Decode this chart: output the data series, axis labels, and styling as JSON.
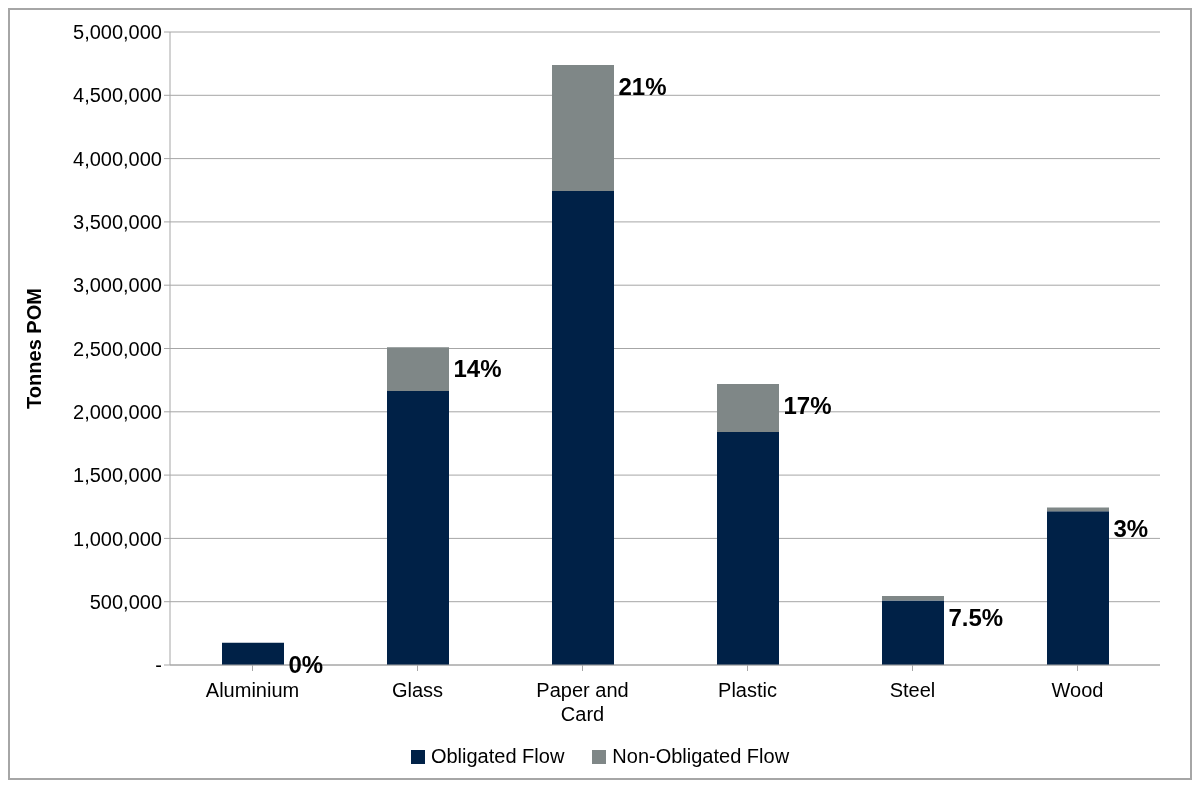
{
  "chart_data": {
    "type": "bar",
    "stacked": true,
    "ylabel": "Tonnes POM",
    "categories": [
      "Aluminium",
      "Glass",
      "Paper and Card",
      "Plastic",
      "Steel",
      "Wood"
    ],
    "series": [
      {
        "name": "Obligated Flow",
        "color": "#002147",
        "values": [
          175000,
          2165000,
          3745000,
          1840000,
          510000,
          1215000
        ]
      },
      {
        "name": "Non-Obligated Flow",
        "color": "#7f8787",
        "values": [
          0,
          345000,
          995000,
          380000,
          35000,
          30000
        ]
      }
    ],
    "ylim": [
      0,
      5000000
    ],
    "yticks": [
      {
        "value": 0,
        "label": "-"
      },
      {
        "value": 500000,
        "label": "500,000"
      },
      {
        "value": 1000000,
        "label": "1,000,000"
      },
      {
        "value": 1500000,
        "label": "1,500,000"
      },
      {
        "value": 2000000,
        "label": "2,000,000"
      },
      {
        "value": 2500000,
        "label": "2,500,000"
      },
      {
        "value": 3000000,
        "label": "3,000,000"
      },
      {
        "value": 3500000,
        "label": "3,500,000"
      },
      {
        "value": 4000000,
        "label": "4,000,000"
      },
      {
        "value": 4500000,
        "label": "4,500,000"
      },
      {
        "value": 5000000,
        "label": "5,000,000"
      }
    ],
    "grid": "y",
    "legend": "bottom",
    "annotations": [
      {
        "text": "0%",
        "x": "Aluminium",
        "y": 175000
      },
      {
        "text": "14%",
        "x": "Glass",
        "y": 2510000
      },
      {
        "text": "21%",
        "x": "Paper and Card",
        "y": 4740000
      },
      {
        "text": "17%",
        "x": "Plastic",
        "y": 2220000
      },
      {
        "text": "7.5%",
        "x": "Steel",
        "y": 545000
      },
      {
        "text": "3%",
        "x": "Wood",
        "y": 1245000
      }
    ]
  }
}
